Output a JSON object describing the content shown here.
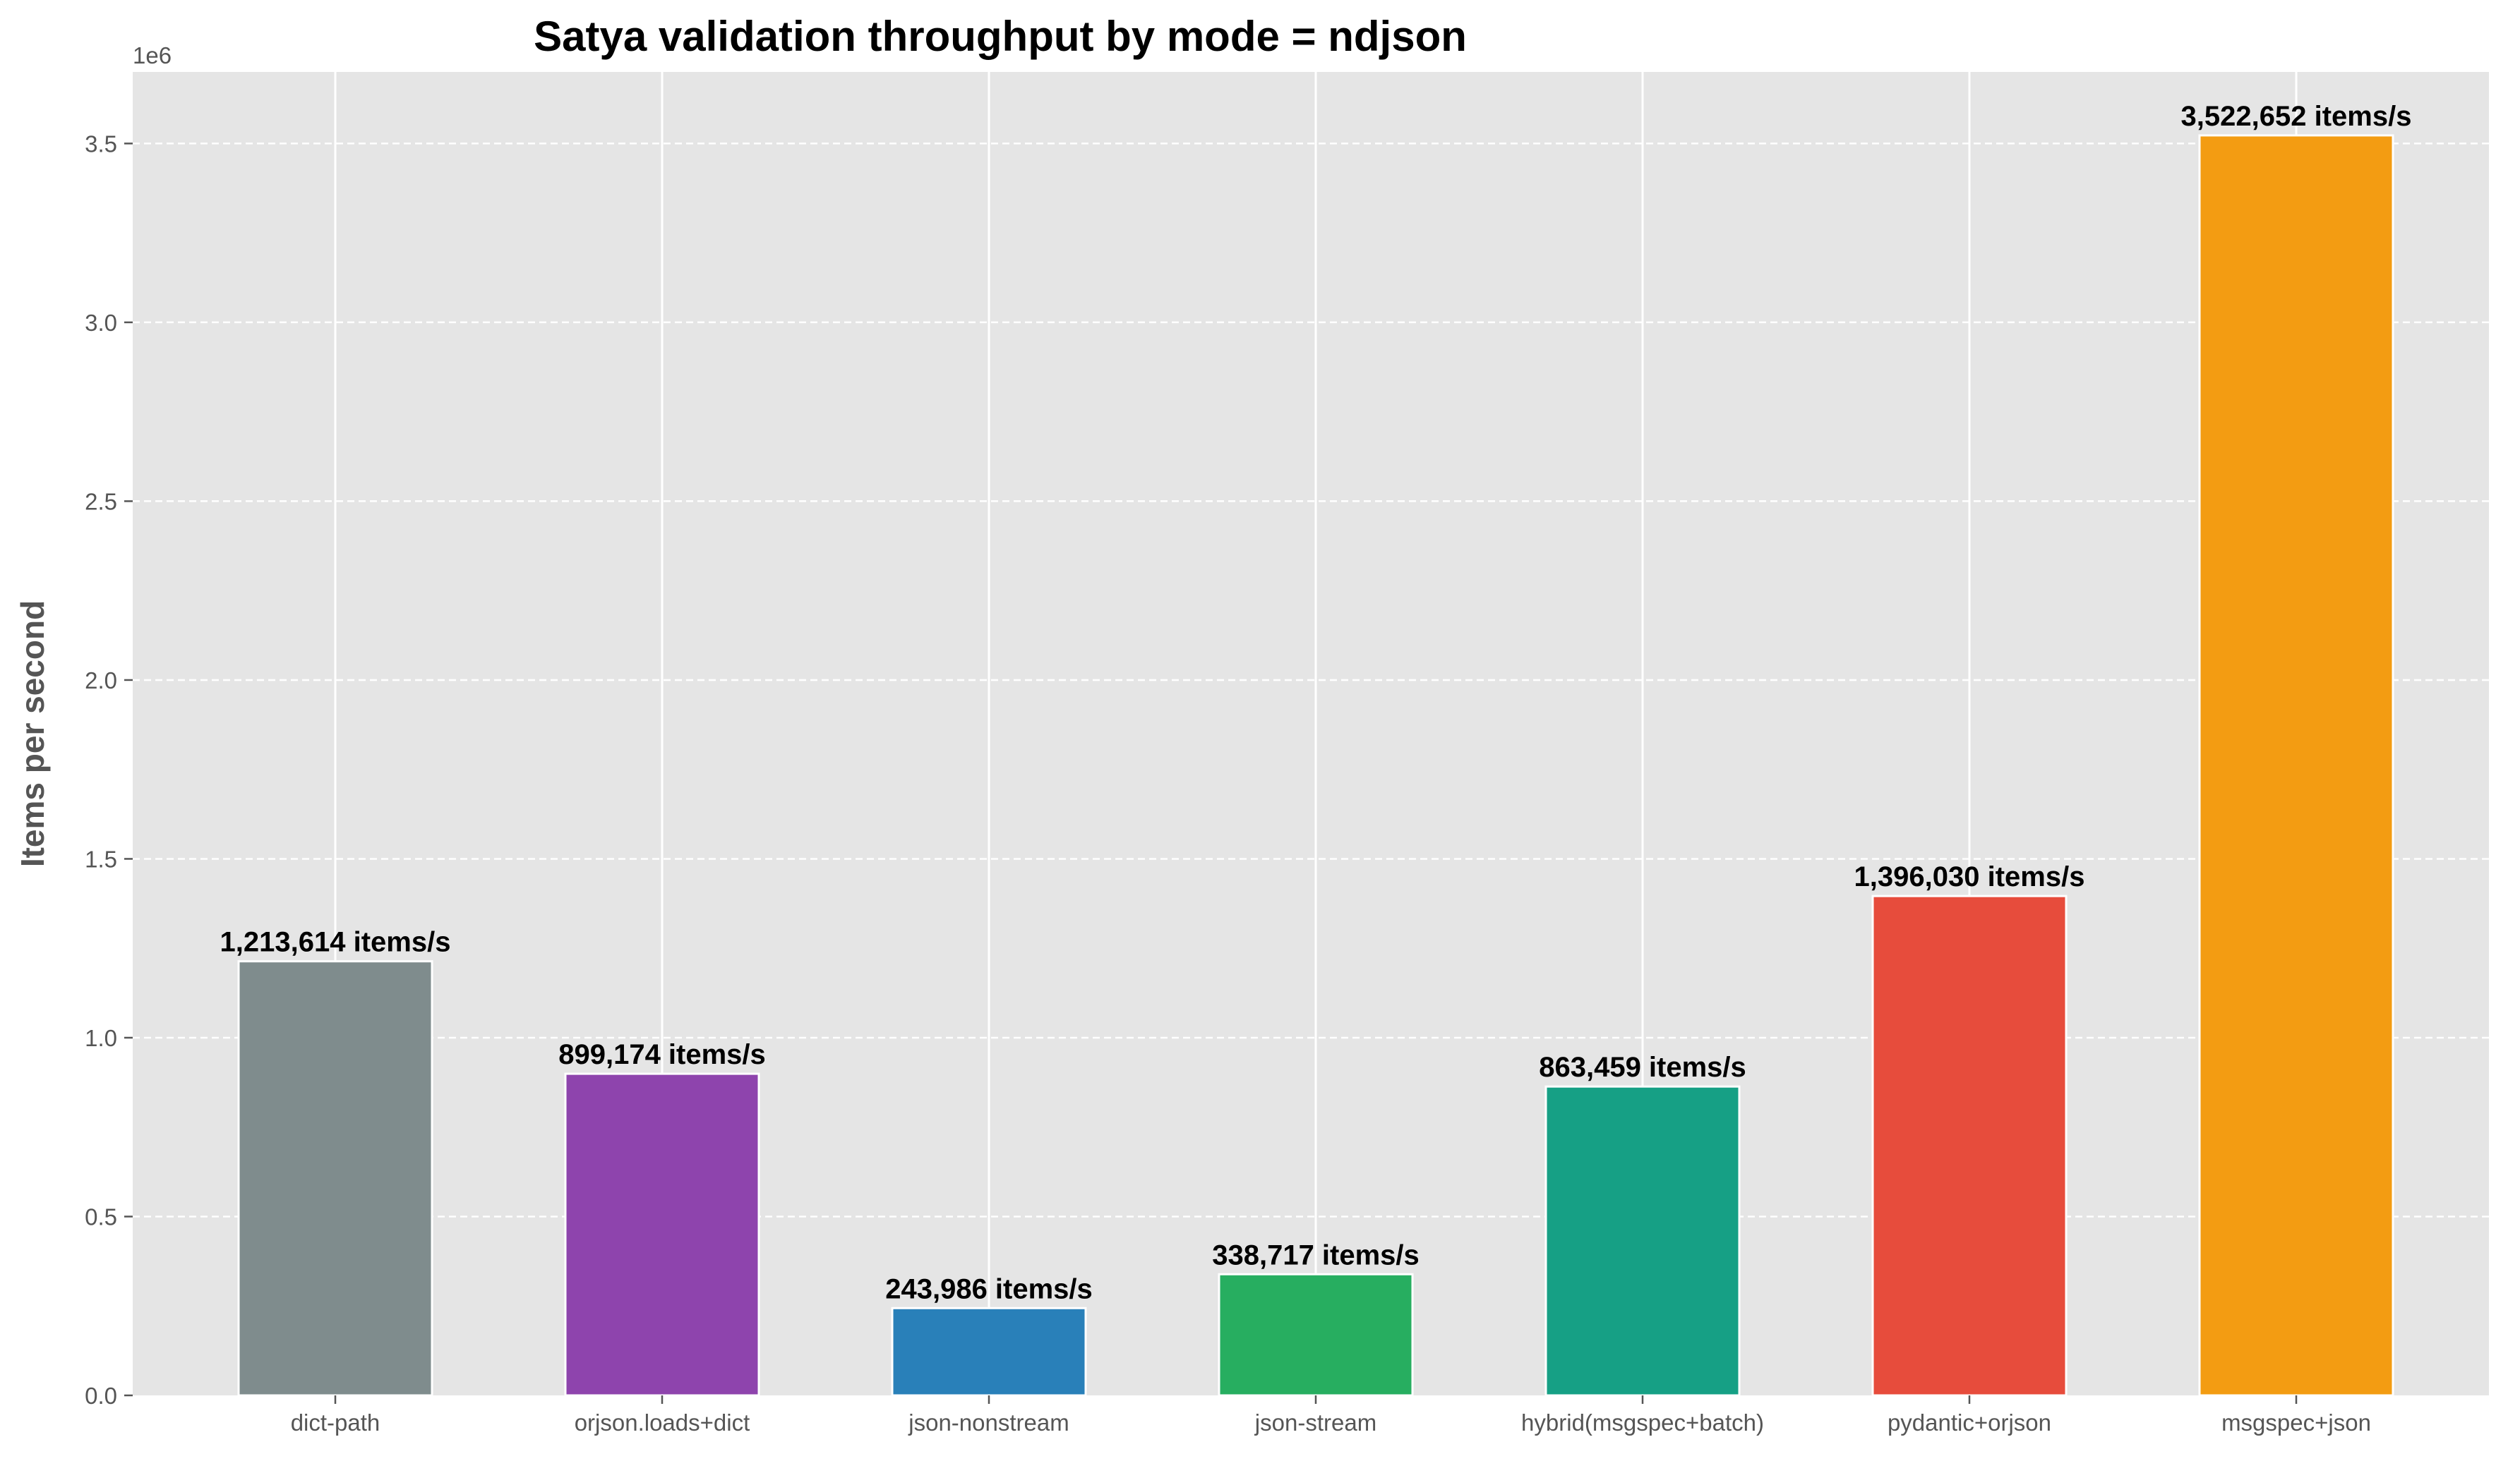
{
  "chart_data": {
    "type": "bar",
    "title": "Satya validation throughput by mode = ndjson",
    "xlabel": "",
    "ylabel": "Items per second",
    "y_offset_label": "1e6",
    "ylim": [
      0,
      3700000
    ],
    "y_ticks": [
      0,
      500000,
      1000000,
      1500000,
      2000000,
      2500000,
      3000000,
      3500000
    ],
    "y_tick_labels": [
      "0.0",
      "0.5",
      "1.0",
      "1.5",
      "2.0",
      "2.5",
      "3.0",
      "3.5"
    ],
    "grid": true,
    "categories": [
      "dict-path",
      "orjson.loads+dict",
      "json-nonstream",
      "json-stream",
      "hybrid(msgspec+batch)",
      "pydantic+orjson",
      "msgspec+json"
    ],
    "values": [
      1213614,
      899174,
      243986,
      338717,
      863459,
      1396030,
      3522652
    ],
    "data_labels": [
      "1,213,614 items/s",
      "899,174 items/s",
      "243,986 items/s",
      "338,717 items/s",
      "863,459 items/s",
      "1,396,030 items/s",
      "3,522,652 items/s"
    ],
    "colors": [
      "#7f8c8d",
      "#8e44ad",
      "#2980b9",
      "#27ae60",
      "#16a085",
      "#e74c3c",
      "#f39c12"
    ],
    "plot_background": "#e5e5e5"
  }
}
